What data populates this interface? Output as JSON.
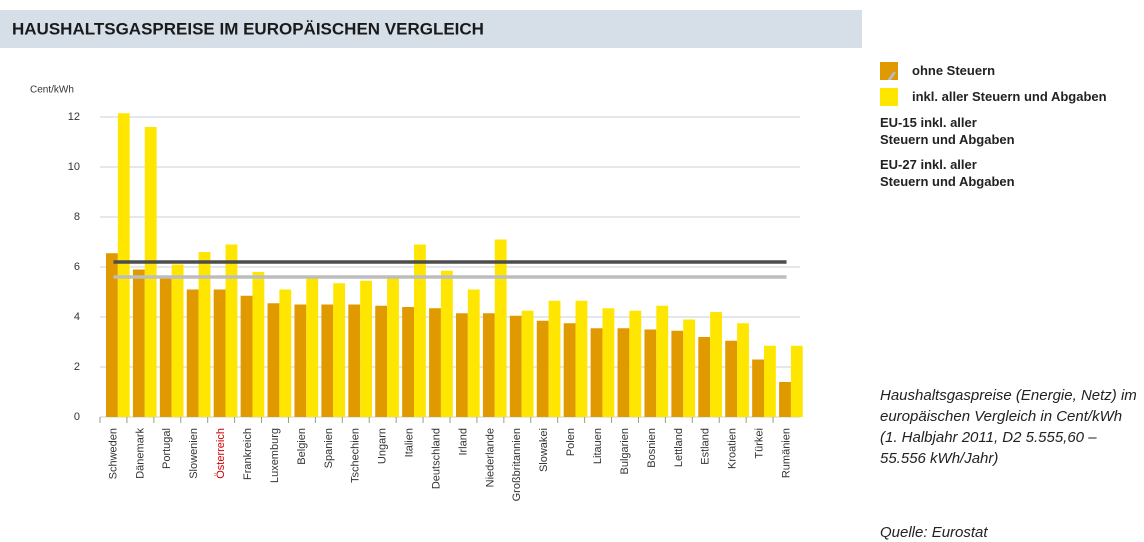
{
  "chart_data": {
    "type": "bar",
    "title": "HAUSHALTSGASPREISE IM EUROPÄISCHEN VERGLEICH",
    "y_axis_label": "Cent/kWh",
    "categories": [
      "Schweden",
      "Dänemark",
      "Portugal",
      "Slowenien",
      "Österreich",
      "Frankreich",
      "Luxemburg",
      "Belgien",
      "Spanien",
      "Tschechien",
      "Ungarn",
      "Italien",
      "Deutschland",
      "Irland",
      "Niederlande",
      "Großbritannien",
      "Slowakei",
      "Polen",
      "Litauen",
      "Bulgarien",
      "Bosnien",
      "Lettland",
      "Estland",
      "Kroatien",
      "Türkei",
      "Rumänien"
    ],
    "series": [
      {
        "name": "ohne Steuern",
        "color": "#e09a00",
        "values": [
          6.55,
          5.9,
          5.55,
          5.1,
          5.1,
          4.85,
          4.55,
          4.5,
          4.5,
          4.5,
          4.45,
          4.4,
          4.35,
          4.15,
          4.15,
          4.05,
          3.85,
          3.75,
          3.55,
          3.55,
          3.5,
          3.45,
          3.2,
          3.05,
          2.3,
          1.4
        ]
      },
      {
        "name": "inkl. aller Steuern und Abgaben",
        "color": "#ffe600",
        "values": [
          12.15,
          11.6,
          6.1,
          6.6,
          6.9,
          5.8,
          5.1,
          5.55,
          5.35,
          5.45,
          5.55,
          6.9,
          5.85,
          5.1,
          7.1,
          4.25,
          4.65,
          4.65,
          4.35,
          4.25,
          4.45,
          3.9,
          4.2,
          3.75,
          2.85,
          2.85
        ]
      }
    ],
    "reference_lines": [
      {
        "name": "EU-15 inkl. aller Steuern und Abgaben",
        "value": 6.2,
        "color": "#4d4d4d"
      },
      {
        "name": "EU-27 inkl. aller Steuern und Abgaben",
        "value": 5.6,
        "color": "#bdbdbd"
      }
    ],
    "highlight_category": "Österreich",
    "highlight_color": "#cc0000",
    "ylim": [
      0,
      12.5
    ],
    "yticks": [
      0,
      2,
      4,
      6,
      8,
      10,
      12
    ],
    "grid": true,
    "note": "Haushaltsgaspreise (Energie, Netz) im europäischen Vergleich in Cent/kWh (1. Halbjahr 2011, D2 5.555,60 – 55.556 kWh/Jahr)",
    "source": "Quelle: Eurostat"
  }
}
